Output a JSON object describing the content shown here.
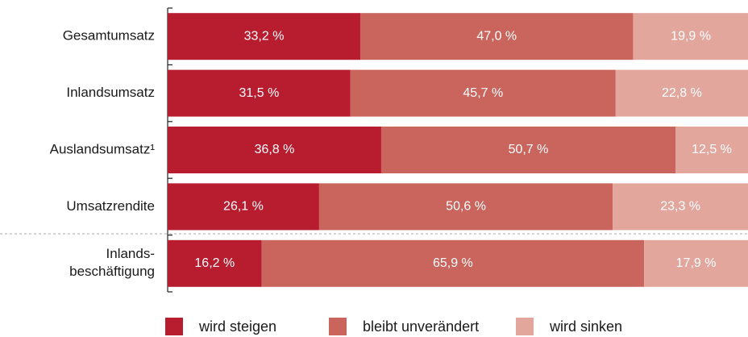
{
  "chart_data": {
    "type": "stacked-barh",
    "categories": [
      "Gesamtumsatz",
      "Inlandsumsatz",
      "Auslandsumsatz¹",
      "Umsatzrendite",
      "Inlands-\nbeschäftigung"
    ],
    "series": [
      {
        "name": "wird steigen",
        "color": "#b71c2f",
        "values": [
          33.2,
          31.5,
          36.8,
          26.1,
          16.2
        ],
        "value_labels": [
          "33,2 %",
          "31,5 %",
          "36,8 %",
          "26,1 %",
          "16,2 %"
        ]
      },
      {
        "name": "bleibt unverändert",
        "color": "#c9655c",
        "values": [
          47.0,
          45.7,
          50.7,
          50.6,
          65.9
        ],
        "value_labels": [
          "47,0 %",
          "45,7 %",
          "50,7 %",
          "50,6 %",
          "65,9 %"
        ]
      },
      {
        "name": "wird sinken",
        "color": "#e3a69d",
        "values": [
          19.9,
          22.8,
          12.5,
          23.3,
          17.9
        ],
        "value_labels": [
          "19,9 %",
          "22,8 %",
          "12,5 %",
          "23,3 %",
          "17,9 %"
        ]
      }
    ],
    "xlim": [
      0,
      100
    ],
    "legend": "bottom"
  }
}
